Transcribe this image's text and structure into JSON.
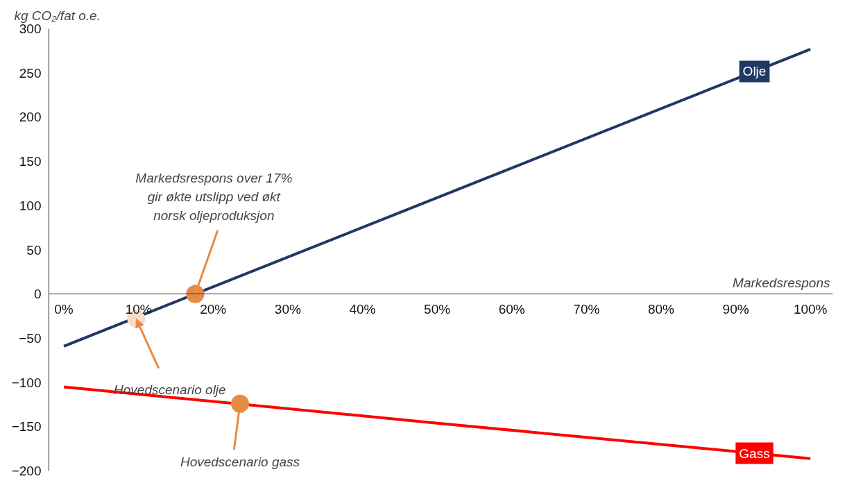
{
  "chart_data": {
    "type": "line",
    "ylabel": "kg CO₂/fat o.e.",
    "xlabel": "Markedsrespons",
    "xlim": [
      -0.02,
      1.03
    ],
    "xticks": [
      {
        "value": 0,
        "label": "0%"
      },
      {
        "value": 0.1,
        "label": "10%"
      },
      {
        "value": 0.2,
        "label": "20%"
      },
      {
        "value": 0.3,
        "label": "30%"
      },
      {
        "value": 0.4,
        "label": "40%"
      },
      {
        "value": 0.5,
        "label": "50%"
      },
      {
        "value": 0.6,
        "label": "60%"
      },
      {
        "value": 0.7,
        "label": "70%"
      },
      {
        "value": 0.8,
        "label": "80%"
      },
      {
        "value": 0.9,
        "label": "90%"
      },
      {
        "value": 1,
        "label": "100%"
      }
    ],
    "ylim": [
      -200,
      300
    ],
    "yticks": [
      -200,
      -150,
      -100,
      -50,
      0,
      50,
      100,
      150,
      200,
      250,
      300
    ],
    "grid": false,
    "legend": false,
    "series": [
      {
        "name": "Olje",
        "color": "#203864",
        "x": [
          0,
          1
        ],
        "values": [
          -59,
          277
        ]
      },
      {
        "name": "Gass",
        "color": "#ff0000",
        "x": [
          0,
          0.5,
          1
        ],
        "values": [
          -105,
          -146,
          -186
        ]
      },
      {
        "type": "scatter",
        "marker": "circle",
        "colors": [
          "#e68a44",
          "#f9dcc6",
          "#e68a44"
        ],
        "x": [
          0.176,
          0.097,
          0.236
        ],
        "values": [
          0,
          -28,
          -124
        ]
      }
    ],
    "annotations": [
      {
        "text": "Markedsrespons over 17%\ngir økte utslipp ved økt\nnorsk oljeproduksjon",
        "x": 0.176,
        "y": 0
      },
      {
        "text": "Hovedscenario olje",
        "x": 0.097,
        "y": -28
      },
      {
        "text": "Hovedscenario gass",
        "x": 0.236,
        "y": -124
      }
    ]
  }
}
